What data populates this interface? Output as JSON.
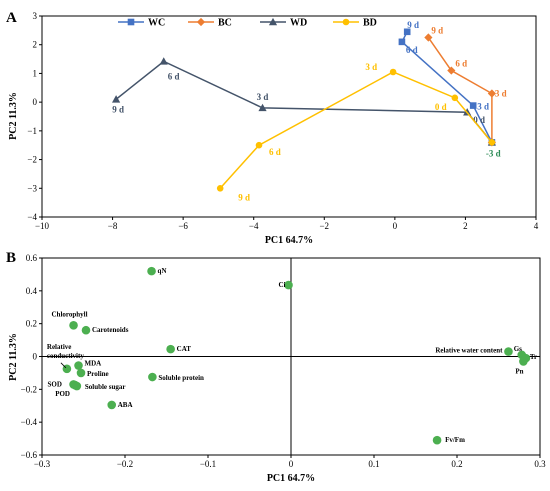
{
  "chart_data": [
    {
      "type": "line",
      "panel": "A",
      "xlabel": "PC1 64.7%",
      "ylabel": "PC2 11.3%",
      "xlim": [
        -10,
        4
      ],
      "ylim": [
        -4,
        3
      ],
      "xticks": [
        "−10",
        "−8",
        "−6",
        "−4",
        "−2",
        "0",
        "2",
        "4"
      ],
      "yticks": [
        "3",
        "2",
        "1",
        "0",
        "−1",
        "−2",
        "−3",
        "−4"
      ],
      "legend_position": "top",
      "series": [
        {
          "name": "WC",
          "color": "#4472C4",
          "marker": "square",
          "points": [
            {
              "x": 2.75,
              "y": -1.4,
              "label": "-3 d"
            },
            {
              "x": 2.22,
              "y": -0.12,
              "label": "3 d"
            },
            {
              "x": 0.2,
              "y": 2.1,
              "label": "6 d"
            },
            {
              "x": 0.35,
              "y": 2.45,
              "label": "9 d"
            }
          ]
        },
        {
          "name": "BC",
          "color": "#ED7D31",
          "marker": "diamond",
          "points": [
            {
              "x": 2.75,
              "y": -1.4,
              "label": ""
            },
            {
              "x": 2.75,
              "y": 0.3,
              "label": "3 d"
            },
            {
              "x": 1.6,
              "y": 1.1,
              "label": "6 d"
            },
            {
              "x": 0.95,
              "y": 2.25,
              "label": "9 d"
            }
          ]
        },
        {
          "name": "WD",
          "color": "#44546A",
          "marker": "triangle",
          "points": [
            {
              "x": 2.75,
              "y": -1.4,
              "label": ""
            },
            {
              "x": 2.05,
              "y": -0.35,
              "label": "0 d"
            },
            {
              "x": -3.75,
              "y": -0.2,
              "label": "3 d"
            },
            {
              "x": -6.55,
              "y": 1.42,
              "label": "6 d"
            },
            {
              "x": -7.9,
              "y": 0.1,
              "label": "9 d"
            }
          ]
        },
        {
          "name": "BD",
          "color": "#FFC000",
          "marker": "circle",
          "points": [
            {
              "x": 2.75,
              "y": -1.4,
              "label": ""
            },
            {
              "x": 1.7,
              "y": 0.15,
              "label": "0 d"
            },
            {
              "x": -0.05,
              "y": 1.05,
              "label": "3 d"
            },
            {
              "x": -3.85,
              "y": -1.5,
              "label": "6 d"
            },
            {
              "x": -4.95,
              "y": -3.0,
              "label": "9 d"
            }
          ]
        }
      ]
    },
    {
      "type": "scatter",
      "panel": "B",
      "xlabel": "PC1 64.7%",
      "ylabel": "PC2 11.3%",
      "xlim": [
        -0.3,
        0.3
      ],
      "ylim": [
        -0.6,
        0.6
      ],
      "xticks": [
        "−0.3",
        "−0.2",
        "−0.1",
        "0",
        "0.1",
        "0.2",
        "0.3"
      ],
      "yticks": [
        "0.6",
        "0.4",
        "0.2",
        "0",
        "−0.2",
        "−0.4",
        "−0.6"
      ],
      "point_color": "#4CAF50",
      "points": [
        {
          "name": "qN",
          "x": -0.168,
          "y": 0.52
        },
        {
          "name": "Ci",
          "x": -0.003,
          "y": 0.435
        },
        {
          "name": "Chlorophyll",
          "x": -0.262,
          "y": 0.19
        },
        {
          "name": "Carotenoids",
          "x": -0.247,
          "y": 0.16
        },
        {
          "name": "CAT",
          "x": -0.145,
          "y": 0.045
        },
        {
          "name": "Relative conductivity",
          "x": -0.27,
          "y": -0.075
        },
        {
          "name": "MDA",
          "x": -0.256,
          "y": -0.055
        },
        {
          "name": "Proline",
          "x": -0.253,
          "y": -0.1
        },
        {
          "name": "SOD",
          "x": -0.262,
          "y": -0.17
        },
        {
          "name": "POD",
          "x": -0.26,
          "y": -0.175
        },
        {
          "name": "Soluble sugar",
          "x": -0.258,
          "y": -0.18
        },
        {
          "name": "Soluble protein",
          "x": -0.167,
          "y": -0.125
        },
        {
          "name": "ABA",
          "x": -0.216,
          "y": -0.295
        },
        {
          "name": "Relative water content",
          "x": 0.262,
          "y": 0.03
        },
        {
          "name": "Gs",
          "x": 0.278,
          "y": 0.01
        },
        {
          "name": "Tr",
          "x": 0.283,
          "y": -0.01
        },
        {
          "name": "Pn",
          "x": 0.28,
          "y": -0.03
        },
        {
          "name": "Fv/Fm",
          "x": 0.176,
          "y": -0.51
        }
      ]
    }
  ]
}
